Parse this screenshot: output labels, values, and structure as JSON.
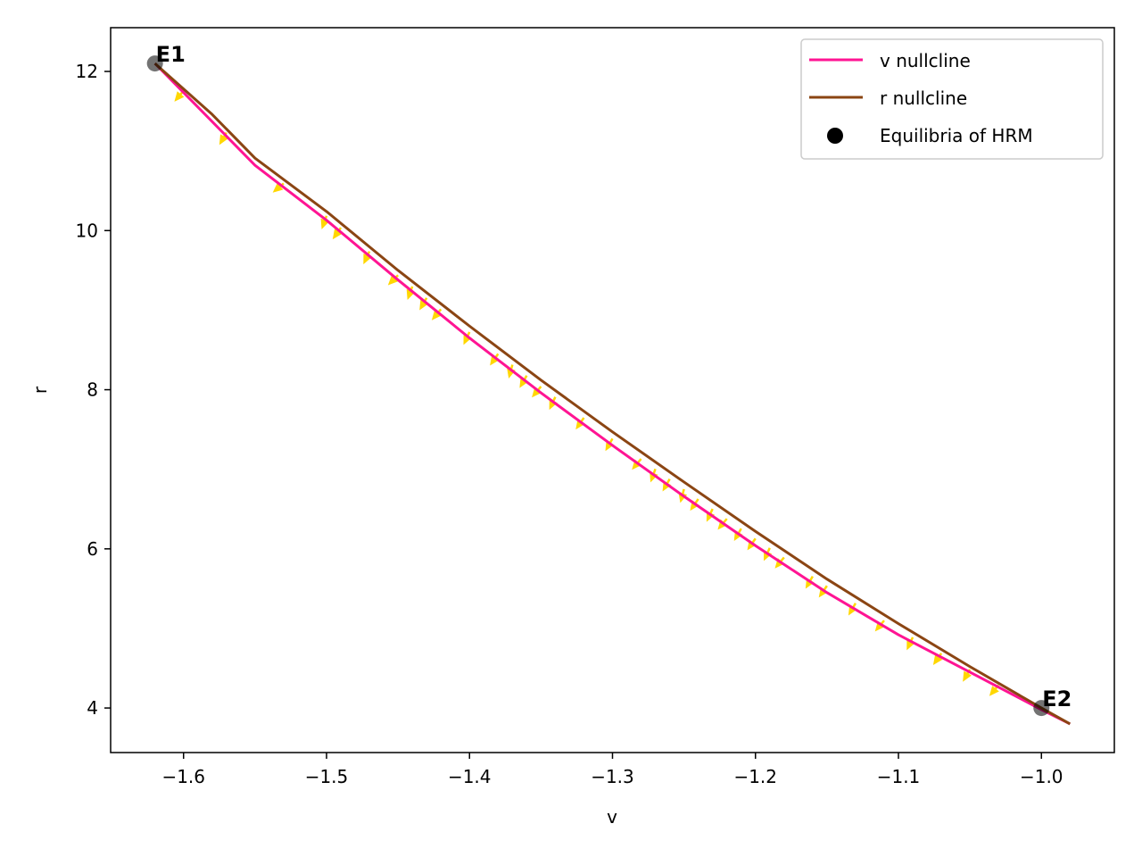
{
  "chart_data": {
    "type": "line",
    "title": "",
    "xlabel": "v",
    "ylabel": "r",
    "xlim": [
      -1.651,
      -0.949
    ],
    "ylim": [
      3.44,
      12.55
    ],
    "x_ticks": [
      -1.6,
      -1.5,
      -1.4,
      -1.3,
      -1.2,
      -1.1,
      -1.0
    ],
    "x_tick_labels": [
      "−1.6",
      "−1.5",
      "−1.4",
      "−1.3",
      "−1.2",
      "−1.1",
      "−1.0"
    ],
    "y_ticks": [
      4,
      6,
      8,
      10,
      12
    ],
    "y_tick_labels": [
      "4",
      "6",
      "8",
      "10",
      "12"
    ],
    "grid": false,
    "legend_position": "top-right",
    "series": [
      {
        "name": "v nullcline",
        "color": "#ff1493",
        "x": [
          -1.62,
          -1.58,
          -1.55,
          -1.5,
          -1.45,
          -1.4,
          -1.35,
          -1.3,
          -1.25,
          -1.2,
          -1.15,
          -1.1,
          -1.05,
          -1.0,
          -0.98
        ],
        "y": [
          12.1,
          11.37,
          10.82,
          10.13,
          9.38,
          8.65,
          7.96,
          7.3,
          6.66,
          6.04,
          5.45,
          4.92,
          4.45,
          3.98,
          3.8
        ]
      },
      {
        "name": "r nullcline",
        "color": "#8b4513",
        "x": [
          -1.62,
          -1.58,
          -1.55,
          -1.5,
          -1.45,
          -1.4,
          -1.35,
          -1.3,
          -1.25,
          -1.2,
          -1.15,
          -1.1,
          -1.05,
          -1.0,
          -0.98
        ],
        "y": [
          12.1,
          11.46,
          10.91,
          10.24,
          9.5,
          8.8,
          8.12,
          7.47,
          6.84,
          6.22,
          5.62,
          5.06,
          4.52,
          4.0,
          3.8
        ]
      }
    ],
    "equilibria": {
      "name": "Equilibria of HRM",
      "color": "#000000",
      "points": [
        {
          "label": "E1",
          "x": -1.62,
          "y": 12.1
        },
        {
          "label": "E2",
          "x": -1.0,
          "y": 4.0
        }
      ]
    },
    "vector_field": {
      "color": "#ffd700",
      "arrow_v": [
        -1.6,
        -1.57,
        -1.53,
        -1.5,
        -1.49,
        -1.47,
        -1.45,
        -1.44,
        -1.43,
        -1.42,
        -1.4,
        -1.38,
        -1.37,
        -1.36,
        -1.35,
        -1.34,
        -1.32,
        -1.3,
        -1.28,
        -1.27,
        -1.26,
        -1.25,
        -1.24,
        -1.23,
        -1.22,
        -1.21,
        -1.2,
        -1.19,
        -1.18,
        -1.16,
        -1.15,
        -1.13,
        -1.11,
        -1.09,
        -1.07,
        -1.05,
        -1.03
      ],
      "arrow_angle_deg": [
        230,
        240,
        220,
        250,
        235,
        245,
        225,
        250,
        240,
        230,
        245,
        235,
        255,
        240,
        230,
        245,
        235,
        240,
        230,
        250,
        240,
        255,
        235,
        245,
        230,
        240,
        235,
        245,
        230,
        240,
        235,
        240,
        230,
        245,
        235,
        240,
        230
      ]
    }
  },
  "legend": {
    "entries": [
      {
        "label": "v nullcline",
        "kind": "line",
        "color": "#ff1493"
      },
      {
        "label": "r nullcline",
        "kind": "line",
        "color": "#8b4513"
      },
      {
        "label": "Equilibria of HRM",
        "kind": "marker",
        "color": "#000000"
      }
    ]
  }
}
